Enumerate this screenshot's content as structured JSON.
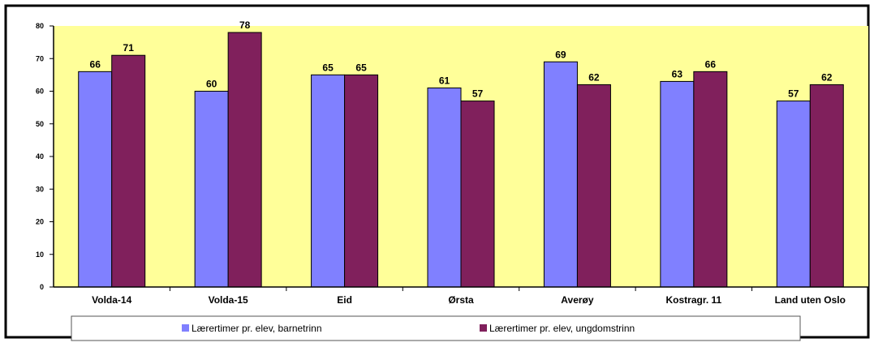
{
  "chart_data": {
    "type": "bar",
    "categories": [
      "Volda-14",
      "Volda-15",
      "Eid",
      "Ørsta",
      "Averøy",
      "Kostragr. 11",
      "Land uten Oslo"
    ],
    "series": [
      {
        "name": "Lærertimer pr. elev, barnetrinn",
        "values": [
          66,
          60,
          65,
          61,
          69,
          63,
          57
        ],
        "color": "#8080ff"
      },
      {
        "name": "Lærertimer pr. elev, ungdomstrinn",
        "values": [
          71,
          78,
          65,
          57,
          62,
          66,
          62
        ],
        "color": "#80205c"
      }
    ],
    "data_labels": {
      "barnetrinn": [
        "66",
        "60",
        "65",
        "61",
        "69",
        "63",
        "57"
      ],
      "ungdomstrinn": [
        "71",
        "78",
        "65",
        "57",
        "62",
        "66",
        "62"
      ]
    },
    "ylim": [
      0,
      80
    ],
    "yticks": [
      "0",
      "10",
      "20",
      "30",
      "40",
      "50",
      "60",
      "70",
      "80"
    ],
    "grid": false,
    "legend_position": "bottom",
    "plot_background": "#ffff99"
  }
}
